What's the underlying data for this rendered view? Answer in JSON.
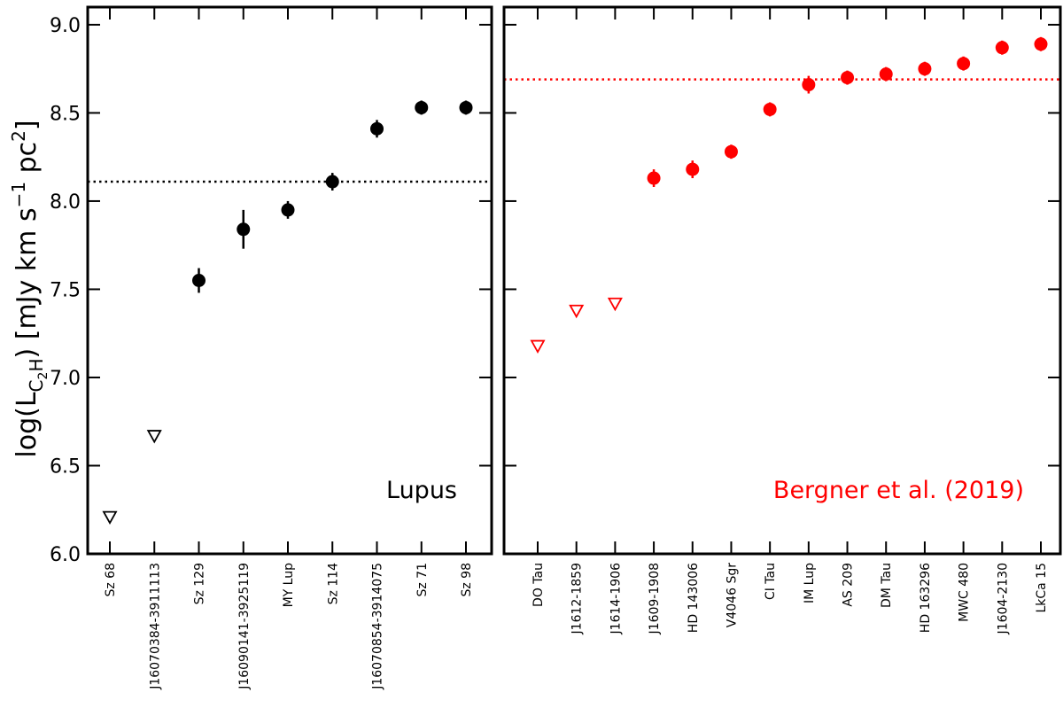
{
  "chart_data": [
    {
      "type": "scatter",
      "panel_label": "Lupus",
      "color": "#000000",
      "ylabel": "log(L_C2H) [mJy km s^-1 pc^2]",
      "ylim": [
        6.0,
        9.1
      ],
      "yticks": [
        "6.0",
        "6.5",
        "7.0",
        "7.5",
        "8.0",
        "8.5",
        "9.0"
      ],
      "categories": [
        "Sz 68",
        "J16070384-3911113",
        "Sz 129",
        "J16090141-3925119",
        "MY Lup",
        "Sz 114",
        "J16070854-3914075",
        "Sz 71",
        "Sz 98"
      ],
      "values": [
        6.21,
        6.67,
        7.55,
        7.84,
        7.95,
        8.11,
        8.41,
        8.53,
        8.53
      ],
      "errors": [
        0,
        0,
        0.07,
        0.11,
        0.05,
        0.05,
        0.05,
        0.04,
        0.04
      ],
      "upper_limit": [
        true,
        true,
        false,
        false,
        false,
        false,
        false,
        false,
        false
      ],
      "reference_line": 8.11
    },
    {
      "type": "scatter",
      "panel_label": "Bergner et al. (2019)",
      "color": "#ff0000",
      "ylim": [
        6.0,
        9.1
      ],
      "categories": [
        "DO Tau",
        "J1612-1859",
        "J1614-1906",
        "J1609-1908",
        "HD 143006",
        "V4046 Sgr",
        "CI Tau",
        "IM Lup",
        "AS 209",
        "DM Tau",
        "HD 163296",
        "MWC 480",
        "J1604-2130",
        "LkCa 15"
      ],
      "values": [
        7.18,
        7.38,
        7.42,
        8.13,
        8.18,
        8.28,
        8.52,
        8.66,
        8.7,
        8.72,
        8.75,
        8.78,
        8.87,
        8.89
      ],
      "errors": [
        0,
        0,
        0,
        0.05,
        0.05,
        0.04,
        0.04,
        0.05,
        0.04,
        0.04,
        0.04,
        0.04,
        0.04,
        0.04
      ],
      "upper_limit": [
        true,
        true,
        true,
        false,
        false,
        false,
        false,
        false,
        false,
        false,
        false,
        false,
        false,
        false
      ],
      "reference_line": 8.69
    }
  ]
}
